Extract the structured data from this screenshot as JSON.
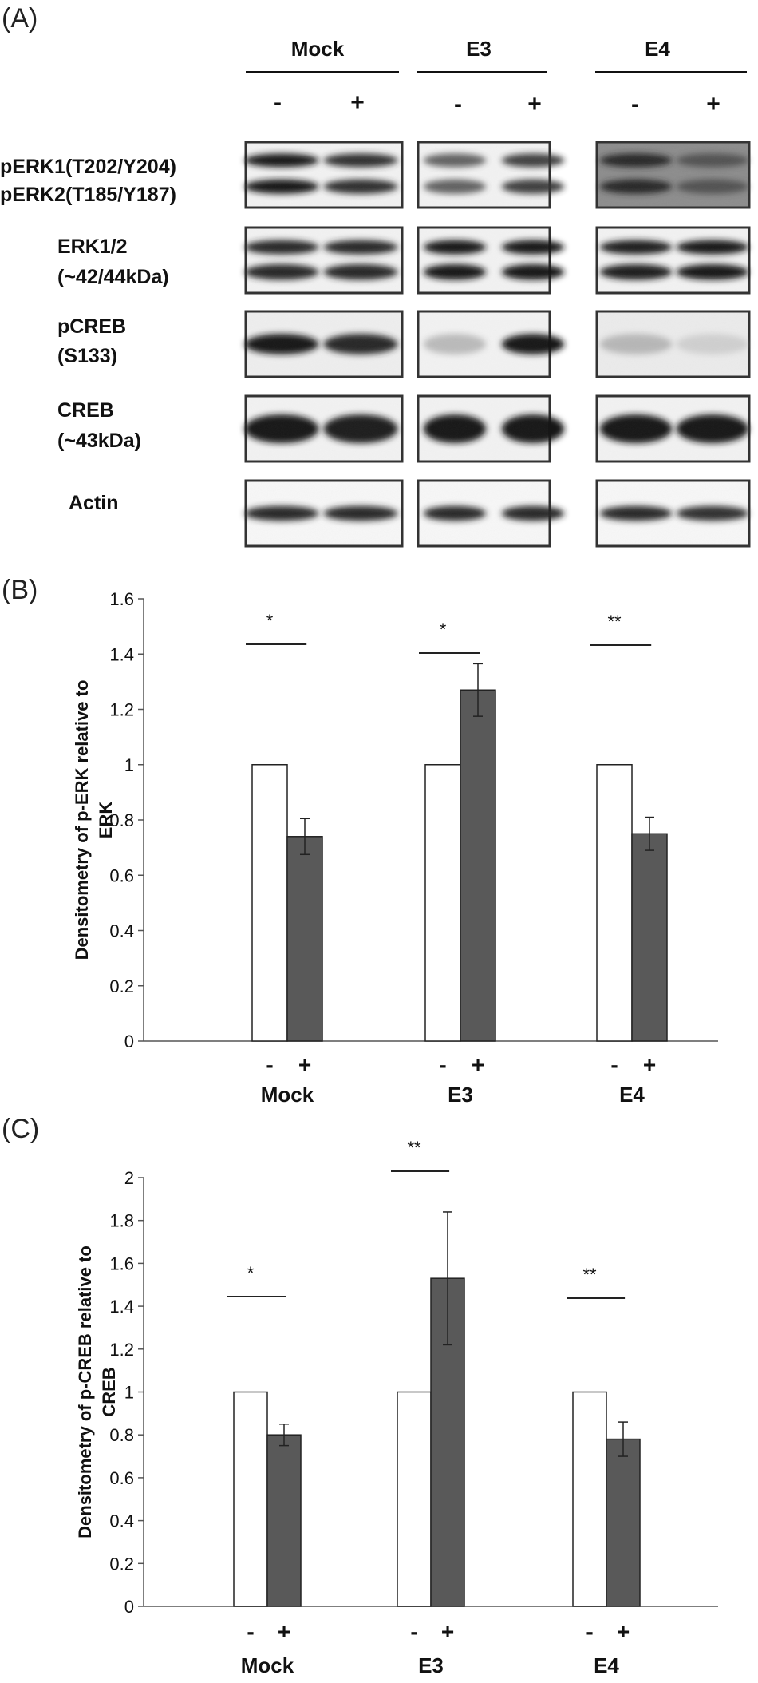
{
  "panel_labels": {
    "a": "(A)",
    "b": "(B)",
    "c": "(C)"
  },
  "blot": {
    "groups": [
      "Mock",
      "E3",
      "E4"
    ],
    "conditions": [
      "-",
      "+"
    ],
    "rows": [
      {
        "label_line1": "pERK1(T202/Y204)",
        "label_line2": "pERK2(T185/Y187)"
      },
      {
        "label_line1": "ERK1/2",
        "label_line2": "(~42/44kDa)"
      },
      {
        "label_line1": "pCREB",
        "label_line2": "(S133)"
      },
      {
        "label_line1": "CREB",
        "label_line2": "(~43kDa)"
      },
      {
        "label_line1": "Actin",
        "label_line2": ""
      }
    ]
  },
  "chart_data": [
    {
      "type": "bar",
      "panel": "(B)",
      "ylabel_line1": "Densitometry of p-ERK relative to",
      "ylabel_line2": "ERK",
      "ylim": [
        0,
        1.6
      ],
      "yticks": [
        "0",
        "0.2",
        "0.4",
        "0.6",
        "0.8",
        "1",
        "1.2",
        "1.4",
        "1.6"
      ],
      "categories": [
        "Mock",
        "E3",
        "E4"
      ],
      "condition_labels": [
        "-",
        "+"
      ],
      "series": [
        {
          "values": [
            1,
            1,
            1
          ],
          "errors": [
            0,
            0,
            0
          ],
          "color": "#ffffff"
        },
        {
          "values": [
            0.74,
            1.27,
            0.75
          ],
          "errors": [
            0.065,
            0.095,
            0.06
          ],
          "color": "#595959"
        }
      ],
      "significance": [
        "*",
        "*",
        "**"
      ],
      "grid": false
    },
    {
      "type": "bar",
      "panel": "(C)",
      "ylabel_line1": "Densitometry of p-CREB relative to",
      "ylabel_line2": "CREB",
      "ylim": [
        0,
        2
      ],
      "yticks": [
        "0",
        "0.2",
        "0.4",
        "0.6",
        "0.8",
        "1",
        "1.2",
        "1.4",
        "1.6",
        "1.8",
        "2"
      ],
      "categories": [
        "Mock",
        "E3",
        "E4"
      ],
      "condition_labels": [
        "-",
        "+"
      ],
      "series": [
        {
          "values": [
            1,
            1,
            1
          ],
          "errors": [
            0,
            0,
            0
          ],
          "color": "#ffffff"
        },
        {
          "values": [
            0.8,
            1.53,
            0.78
          ],
          "errors": [
            0.05,
            0.31,
            0.08
          ],
          "color": "#595959"
        }
      ],
      "significance": [
        "*",
        "**",
        "**"
      ],
      "grid": false
    }
  ]
}
